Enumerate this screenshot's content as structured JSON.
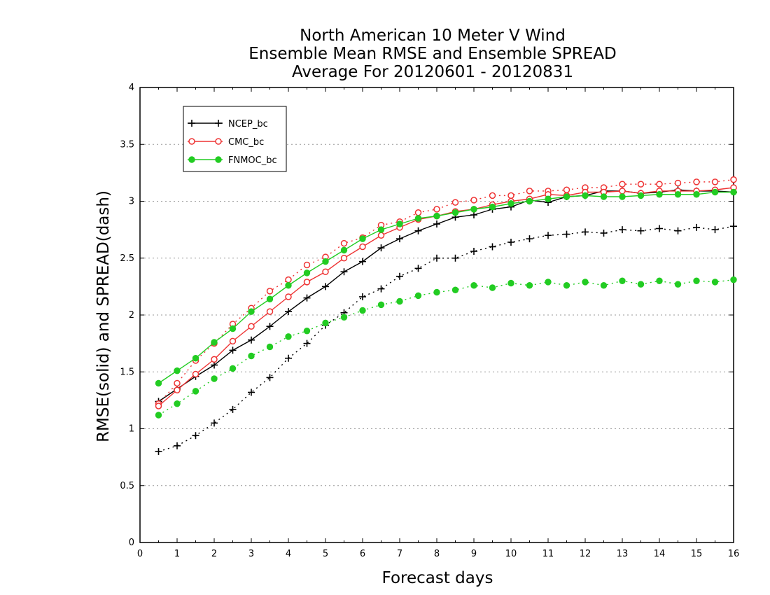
{
  "chart_data": {
    "type": "line",
    "title_lines": [
      "North American 10 Meter V Wind",
      "Ensemble Mean RMSE and Ensemble SPREAD",
      "Average For 20120601 - 20120831"
    ],
    "xlabel": "Forecast days",
    "ylabel": "RMSE(solid) and SPREAD(dash)",
    "xlim": [
      0,
      16
    ],
    "ylim": [
      0,
      4
    ],
    "xticks": [
      "0",
      "1",
      "2",
      "3",
      "4",
      "5",
      "6",
      "7",
      "8",
      "9",
      "10",
      "11",
      "12",
      "13",
      "14",
      "15",
      "16"
    ],
    "yticks": [
      "0",
      "0.5",
      "1",
      "1.5",
      "2",
      "2.5",
      "3",
      "3.5",
      "4"
    ],
    "grid": "horizontal dotted",
    "legend_position": "top-left",
    "x": [
      0.5,
      1,
      1.5,
      2,
      2.5,
      3,
      3.5,
      4,
      4.5,
      5,
      5.5,
      6,
      6.5,
      7,
      7.5,
      8,
      8.5,
      9,
      9.5,
      10,
      10.5,
      11,
      11.5,
      12,
      12.5,
      13,
      13.5,
      14,
      14.5,
      15,
      15.5,
      16
    ],
    "series": [
      {
        "name": "NCEP_bc",
        "color": "#000000",
        "marker": "plus",
        "rmse": [
          1.24,
          1.35,
          1.46,
          1.56,
          1.69,
          1.78,
          1.9,
          2.03,
          2.15,
          2.25,
          2.38,
          2.47,
          2.59,
          2.67,
          2.74,
          2.8,
          2.86,
          2.88,
          2.93,
          2.95,
          3.01,
          2.99,
          3.04,
          3.05,
          3.09,
          3.09,
          3.07,
          3.08,
          3.1,
          3.09,
          3.09,
          3.08
        ],
        "spread": [
          0.8,
          0.85,
          0.94,
          1.05,
          1.17,
          1.32,
          1.45,
          1.62,
          1.75,
          1.91,
          2.02,
          2.16,
          2.23,
          2.34,
          2.41,
          2.5,
          2.5,
          2.56,
          2.6,
          2.64,
          2.67,
          2.7,
          2.71,
          2.73,
          2.72,
          2.75,
          2.74,
          2.76,
          2.74,
          2.77,
          2.75,
          2.78
        ]
      },
      {
        "name": "CMC_bc",
        "color": "#ee3333",
        "marker": "open-circle",
        "rmse": [
          1.2,
          1.34,
          1.48,
          1.61,
          1.77,
          1.9,
          2.03,
          2.16,
          2.29,
          2.38,
          2.5,
          2.6,
          2.7,
          2.77,
          2.84,
          2.87,
          2.91,
          2.93,
          2.97,
          3.0,
          3.02,
          3.06,
          3.05,
          3.08,
          3.08,
          3.09,
          3.07,
          3.09,
          3.09,
          3.09,
          3.1,
          3.12
        ],
        "spread": [
          1.22,
          1.4,
          1.6,
          1.75,
          1.92,
          2.06,
          2.21,
          2.31,
          2.44,
          2.51,
          2.63,
          2.68,
          2.79,
          2.82,
          2.9,
          2.93,
          2.99,
          3.01,
          3.05,
          3.05,
          3.09,
          3.09,
          3.1,
          3.12,
          3.12,
          3.15,
          3.15,
          3.15,
          3.16,
          3.17,
          3.17,
          3.19
        ]
      },
      {
        "name": "FNMOC_bc",
        "color": "#22cc22",
        "marker": "filled-circle",
        "rmse": [
          1.4,
          1.51,
          1.62,
          1.76,
          1.88,
          2.03,
          2.14,
          2.26,
          2.37,
          2.47,
          2.57,
          2.67,
          2.75,
          2.8,
          2.85,
          2.87,
          2.9,
          2.93,
          2.95,
          2.98,
          3.0,
          3.02,
          3.04,
          3.05,
          3.04,
          3.04,
          3.05,
          3.06,
          3.06,
          3.06,
          3.08,
          3.08
        ],
        "spread": [
          1.12,
          1.22,
          1.33,
          1.44,
          1.53,
          1.64,
          1.72,
          1.81,
          1.86,
          1.93,
          1.98,
          2.04,
          2.09,
          2.12,
          2.17,
          2.2,
          2.22,
          2.26,
          2.24,
          2.28,
          2.26,
          2.29,
          2.26,
          2.29,
          2.26,
          2.3,
          2.27,
          2.3,
          2.27,
          2.3,
          2.29,
          2.31
        ]
      }
    ]
  }
}
